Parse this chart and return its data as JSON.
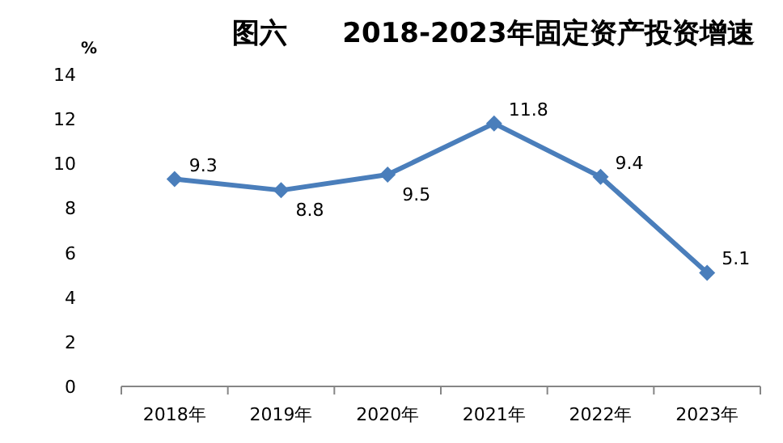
{
  "chart_data": {
    "type": "line",
    "title": "图六　　2018-2023年固定资产投资增速",
    "ylabel": "%",
    "categories": [
      "2018年",
      "2019年",
      "2020年",
      "2021年",
      "2022年",
      "2023年"
    ],
    "series": [
      {
        "color": "#4a7ebb",
        "values": [
          9.3,
          8.8,
          9.5,
          11.8,
          9.4,
          5.1
        ]
      }
    ],
    "ylim": [
      0,
      14
    ],
    "yticks": [
      0,
      2,
      4,
      6,
      8,
      10,
      12,
      14
    ],
    "data_labels": true,
    "marker": "diamond",
    "line_style": "solid",
    "grid": false
  }
}
